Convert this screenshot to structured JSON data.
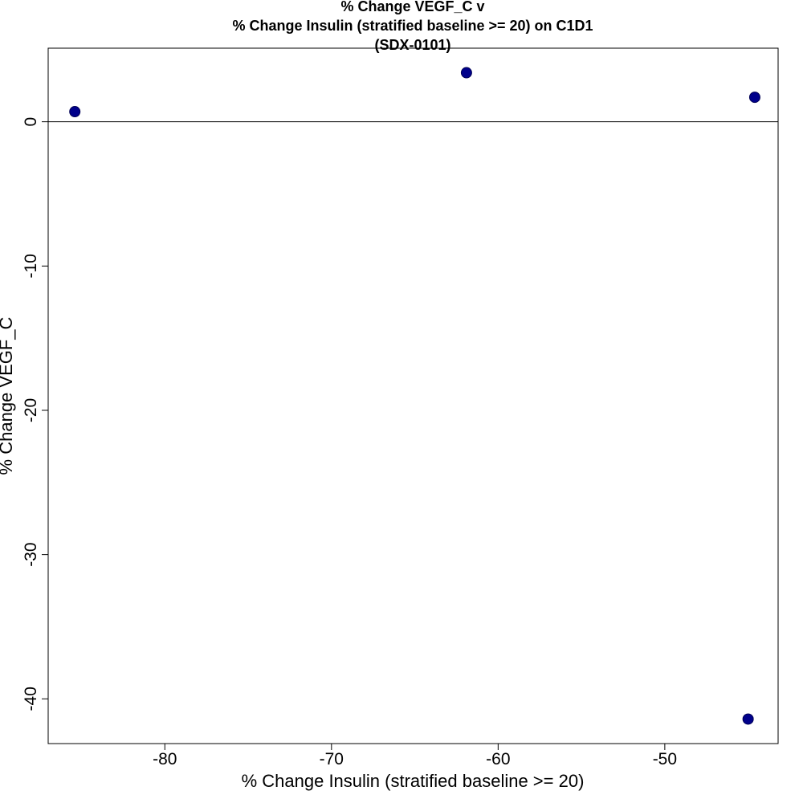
{
  "chart_data": {
    "type": "scatter",
    "title": [
      "% Change VEGF_C v",
      "% Change Insulin (stratified baseline >= 20) on C1D1",
      "(SDX-0101)"
    ],
    "xlabel": "% Change Insulin (stratified baseline >= 20)",
    "ylabel": "% Change VEGF_C",
    "xlim": [
      -87.0,
      -43.2
    ],
    "ylim": [
      -43.1,
      5.1
    ],
    "x_ticks": [
      -80,
      -70,
      -60,
      -50
    ],
    "y_ticks": [
      0,
      -10,
      -20,
      -30,
      -40
    ],
    "reference_line_y": 0,
    "grid": false,
    "point_color": "#00008B",
    "points": [
      {
        "x": -85.4,
        "y": 0.7
      },
      {
        "x": -61.9,
        "y": 3.4
      },
      {
        "x": -44.6,
        "y": 1.7
      },
      {
        "x": -45.0,
        "y": -41.4
      }
    ]
  }
}
